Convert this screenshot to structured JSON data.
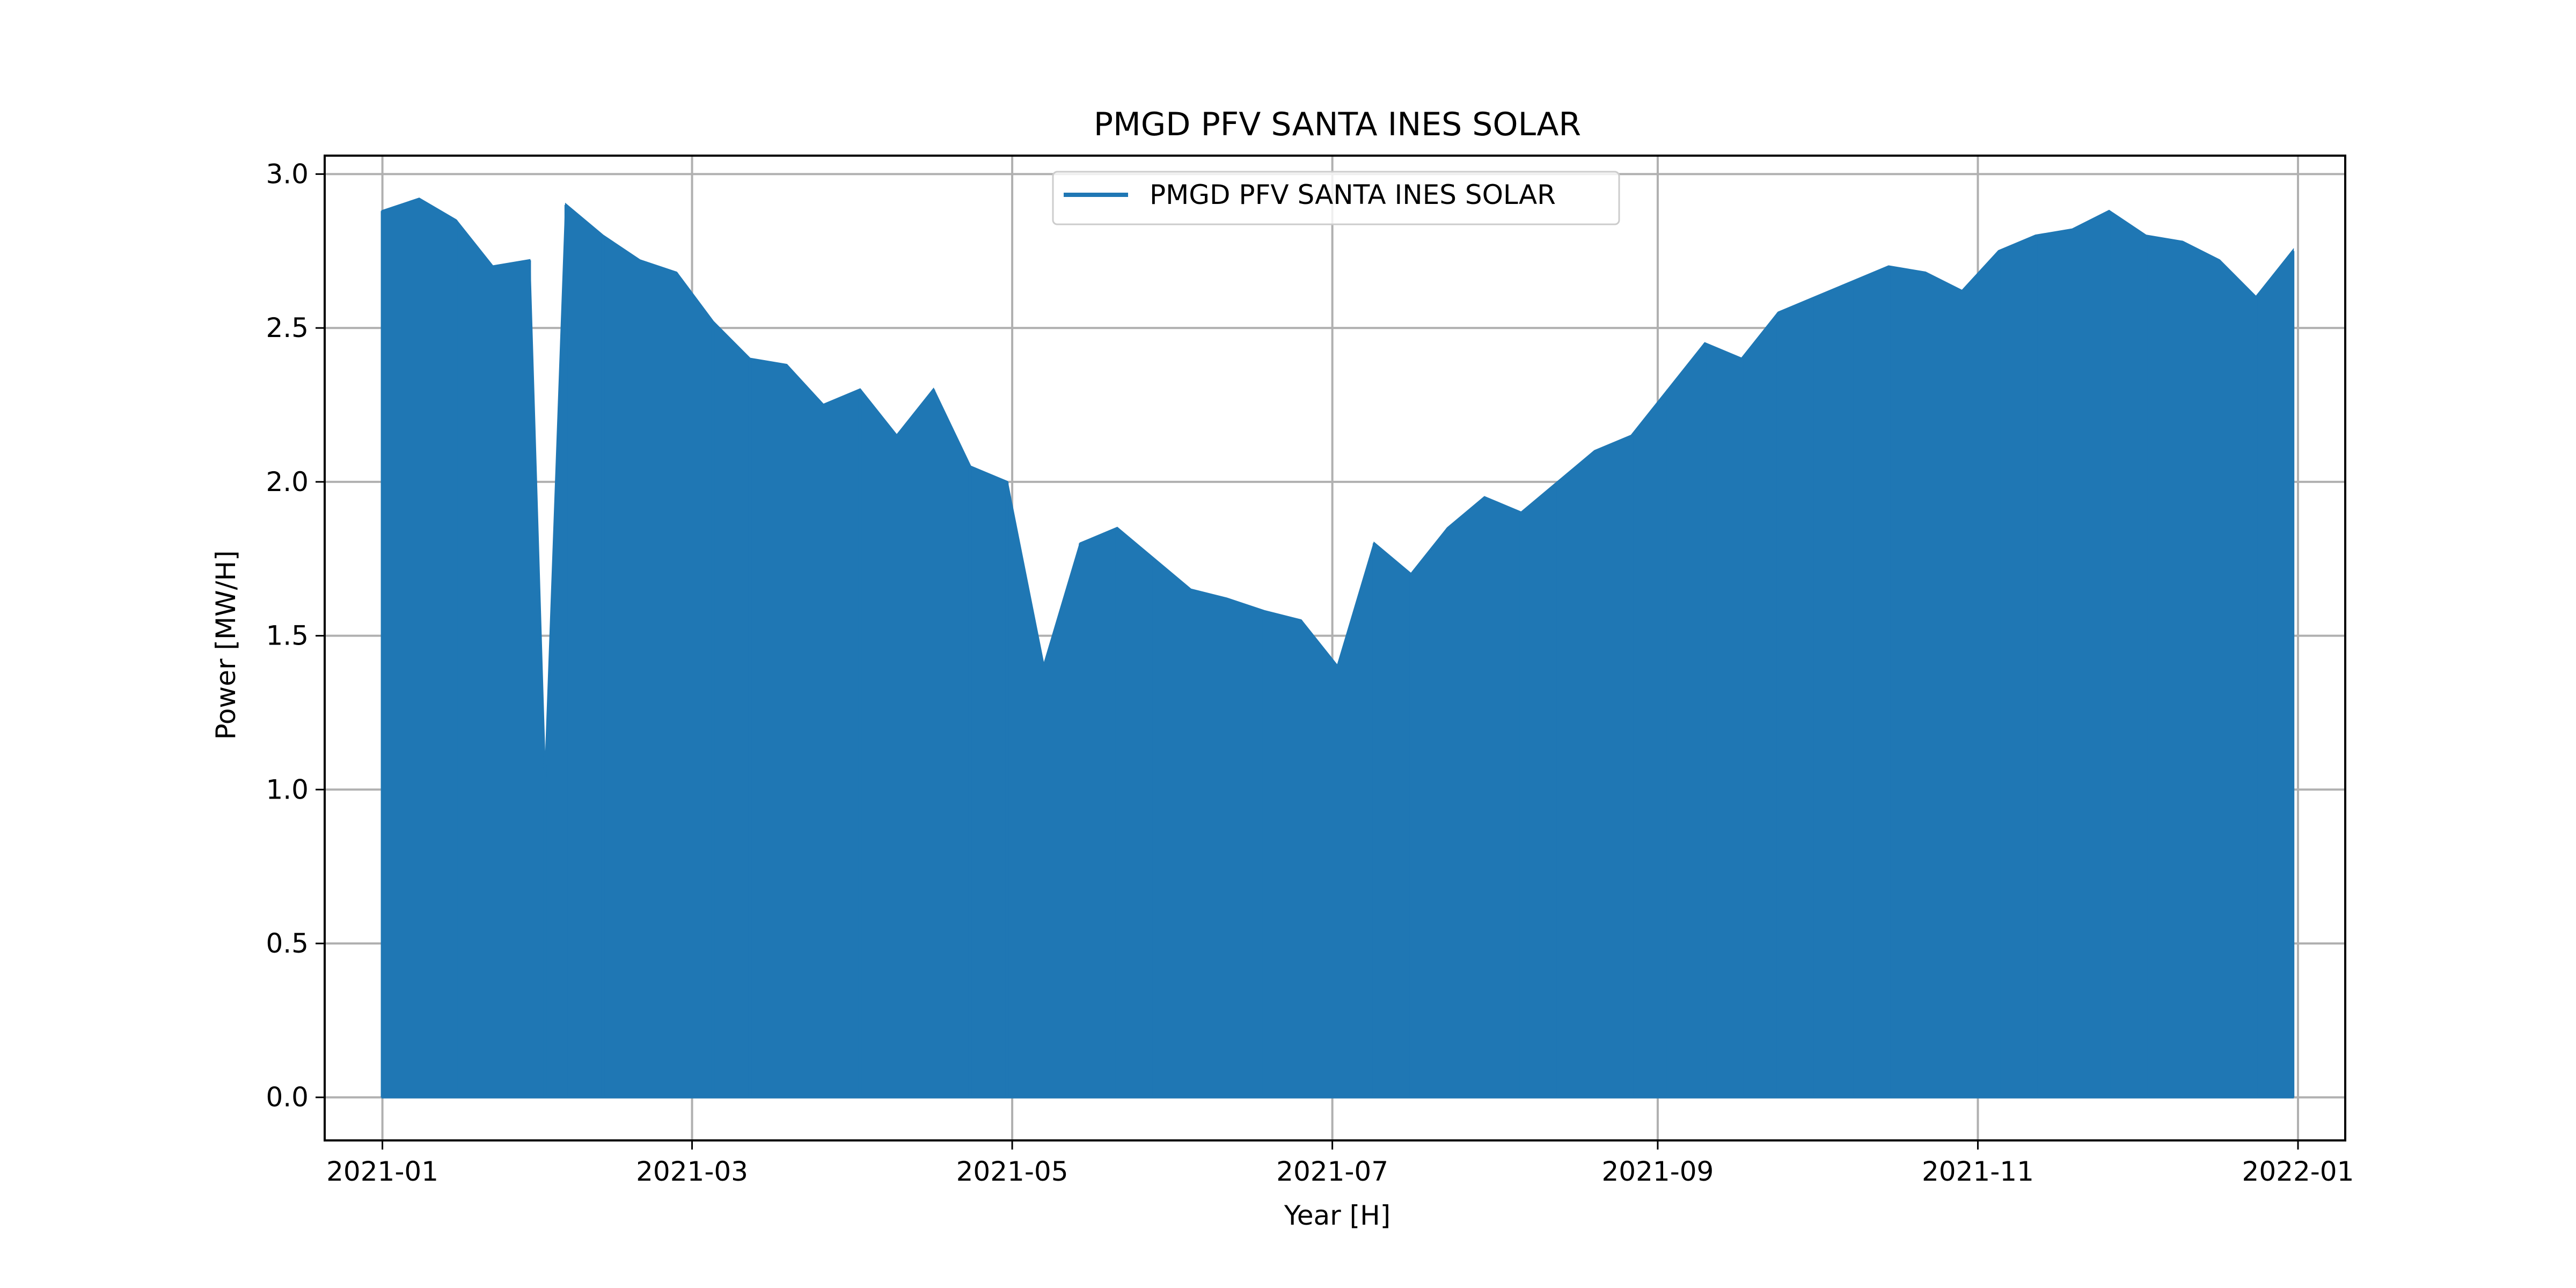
{
  "chart_data": {
    "type": "area",
    "title": "PMGD PFV SANTA INES SOLAR",
    "xlabel": "Year [H]",
    "ylabel": "Power [MW/H]",
    "xlim": [
      "2020-12-21",
      "2022-01-10"
    ],
    "ylim": [
      -0.14,
      3.06
    ],
    "x_ticks": [
      "2021-01",
      "2021-03",
      "2021-05",
      "2021-07",
      "2021-09",
      "2021-11",
      "2022-01"
    ],
    "y_ticks": [
      "0.0",
      "0.5",
      "1.0",
      "1.5",
      "2.0",
      "2.5",
      "3.0"
    ],
    "grid": true,
    "legend": {
      "position": "upper-center"
    },
    "series": [
      {
        "name": "PMGD PFV SANTA INES SOLAR",
        "color": "#1f77b4",
        "x": [
          "2021-01-01",
          "2021-01-08",
          "2021-01-15",
          "2021-01-22",
          "2021-01-29",
          "2021-02-01",
          "2021-02-05",
          "2021-02-12",
          "2021-02-19",
          "2021-02-26",
          "2021-03-05",
          "2021-03-12",
          "2021-03-19",
          "2021-03-26",
          "2021-04-02",
          "2021-04-09",
          "2021-04-16",
          "2021-04-23",
          "2021-04-30",
          "2021-05-07",
          "2021-05-14",
          "2021-05-21",
          "2021-05-28",
          "2021-06-04",
          "2021-06-11",
          "2021-06-18",
          "2021-06-25",
          "2021-07-02",
          "2021-07-09",
          "2021-07-16",
          "2021-07-23",
          "2021-07-30",
          "2021-08-06",
          "2021-08-13",
          "2021-08-20",
          "2021-08-27",
          "2021-09-03",
          "2021-09-10",
          "2021-09-17",
          "2021-09-24",
          "2021-10-01",
          "2021-10-08",
          "2021-10-15",
          "2021-10-22",
          "2021-10-29",
          "2021-11-05",
          "2021-11-12",
          "2021-11-19",
          "2021-11-26",
          "2021-12-03",
          "2021-12-10",
          "2021-12-17",
          "2021-12-24",
          "2021-12-31"
        ],
        "values": [
          2.88,
          2.92,
          2.85,
          2.7,
          2.72,
          1.02,
          2.9,
          2.8,
          2.72,
          2.68,
          2.52,
          2.4,
          2.38,
          2.25,
          2.3,
          2.15,
          2.3,
          2.05,
          2.0,
          1.4,
          1.8,
          1.85,
          1.75,
          1.65,
          1.62,
          1.58,
          1.55,
          1.4,
          1.8,
          1.7,
          1.85,
          1.95,
          1.9,
          2.0,
          2.1,
          2.15,
          2.3,
          2.45,
          2.4,
          2.55,
          2.6,
          2.65,
          2.7,
          2.68,
          2.62,
          2.75,
          2.8,
          2.82,
          2.88,
          2.8,
          2.78,
          2.72,
          2.6,
          2.75
        ]
      }
    ]
  }
}
